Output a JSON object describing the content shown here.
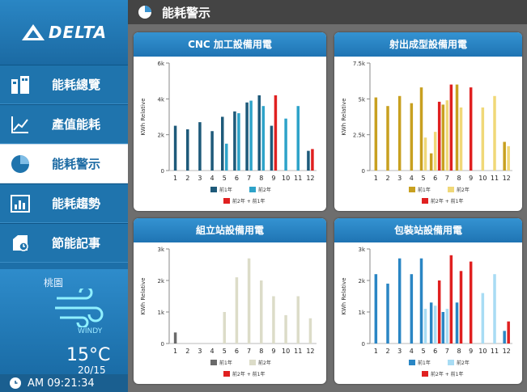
{
  "brand": {
    "name": "DELTA"
  },
  "header": {
    "title": "能耗警示"
  },
  "nav": {
    "items": [
      {
        "label": "能耗總覽",
        "icon": "building-icon"
      },
      {
        "label": "產值能耗",
        "icon": "trend-chart-icon"
      },
      {
        "label": "能耗警示",
        "icon": "pie-chart-icon"
      },
      {
        "label": "能耗趨勢",
        "icon": "bar-chart-icon"
      },
      {
        "label": "節能記事",
        "icon": "notes-icon"
      }
    ],
    "active": 2
  },
  "weather": {
    "location": "桃園",
    "condition": "WINDY",
    "temperature": "15°C",
    "range": "20/15"
  },
  "clock": {
    "time": "AM 09:21:34"
  },
  "colors": {
    "accent": "#1f74ad",
    "alert": "#e02020"
  },
  "chart_data": [
    {
      "type": "bar",
      "title": "CNC 加工設備用電",
      "ylabel": "KWh Relative",
      "ylim": [
        0,
        6000
      ],
      "yticks": [
        "0",
        "2k",
        "4k",
        "6k"
      ],
      "categories": [
        "1",
        "2",
        "3",
        "4",
        "5",
        "6",
        "7",
        "8",
        "9",
        "10",
        "11",
        "12"
      ],
      "series": [
        {
          "name": "前1年",
          "color": "#1e5a7a",
          "values": [
            2500,
            2300,
            2700,
            2200,
            3000,
            3300,
            3800,
            4200,
            2500,
            null,
            null,
            1100
          ]
        },
        {
          "name": "前2年",
          "color": "#2ea3c9",
          "values": [
            null,
            null,
            null,
            null,
            1500,
            3200,
            3900,
            3600,
            null,
            2900,
            3600,
            null
          ]
        },
        {
          "name": "前2年 + 前1年",
          "color": "#e02020",
          "values": [
            null,
            null,
            null,
            null,
            null,
            null,
            null,
            null,
            4200,
            null,
            null,
            1200
          ]
        }
      ]
    },
    {
      "type": "bar",
      "title": "射出成型設備用電",
      "ylabel": "KWh Relative",
      "ylim": [
        0,
        7500
      ],
      "yticks": [
        "0",
        "2.5k",
        "5k",
        "7.5k"
      ],
      "categories": [
        "1",
        "2",
        "3",
        "4",
        "5",
        "6",
        "7",
        "8",
        "9",
        "10",
        "11",
        "12"
      ],
      "series": [
        {
          "name": "前1年",
          "color": "#c8a020",
          "values": [
            5100,
            4500,
            5200,
            4700,
            5800,
            1200,
            4600,
            6000,
            null,
            null,
            null,
            2000
          ]
        },
        {
          "name": "前2年",
          "color": "#f0d878",
          "values": [
            null,
            null,
            null,
            null,
            2300,
            2700,
            4900,
            4400,
            null,
            4400,
            5200,
            1700
          ]
        },
        {
          "name": "前2年 + 前1年",
          "color": "#e02020",
          "values": [
            null,
            null,
            null,
            null,
            null,
            4800,
            6000,
            null,
            5800,
            null,
            null,
            null
          ]
        }
      ]
    },
    {
      "type": "bar",
      "title": "組立站設備用電",
      "ylabel": "KWh Relative",
      "ylim": [
        0,
        3000
      ],
      "yticks": [
        "0",
        "1k",
        "2k",
        "3k"
      ],
      "categories": [
        "1",
        "2",
        "3",
        "4",
        "5",
        "6",
        "7",
        "8",
        "9",
        "10",
        "11",
        "12"
      ],
      "series": [
        {
          "name": "前1年",
          "color": "#6a6a6a",
          "values": [
            350,
            null,
            null,
            null,
            null,
            null,
            null,
            null,
            null,
            null,
            null,
            null
          ]
        },
        {
          "name": "前2年",
          "color": "#dcdcc8",
          "values": [
            null,
            null,
            null,
            null,
            1000,
            2100,
            2700,
            2000,
            1500,
            900,
            1500,
            800
          ]
        },
        {
          "name": "前2年 + 前1年",
          "color": "#e02020",
          "values": [
            null,
            null,
            null,
            null,
            null,
            null,
            null,
            null,
            null,
            null,
            null,
            null
          ]
        }
      ]
    },
    {
      "type": "bar",
      "title": "包裝站設備用電",
      "ylabel": "KWh Relative",
      "ylim": [
        0,
        3000
      ],
      "yticks": [
        "0",
        "1k",
        "2k",
        "3k"
      ],
      "categories": [
        "1",
        "2",
        "3",
        "4",
        "5",
        "6",
        "7",
        "8",
        "9",
        "10",
        "11",
        "12"
      ],
      "series": [
        {
          "name": "前1年",
          "color": "#2a86c4",
          "values": [
            2200,
            1900,
            2700,
            2200,
            2700,
            1300,
            1000,
            1300,
            null,
            null,
            null,
            400
          ]
        },
        {
          "name": "前2年",
          "color": "#a8dcf4",
          "values": [
            null,
            null,
            null,
            null,
            1100,
            1200,
            1100,
            null,
            null,
            1600,
            2200,
            null
          ]
        },
        {
          "name": "前2年 + 前1年",
          "color": "#e02020",
          "values": [
            null,
            null,
            null,
            null,
            null,
            2000,
            2800,
            2300,
            2600,
            null,
            null,
            700
          ]
        }
      ]
    }
  ]
}
